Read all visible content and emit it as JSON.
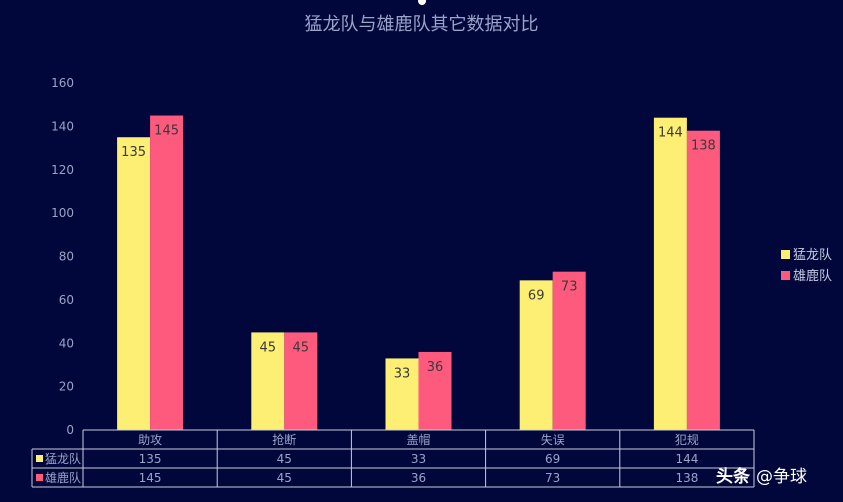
{
  "chart_data": {
    "type": "bar",
    "title": "猛龙队与雄鹿队其它数据对比",
    "categories": [
      "助攻",
      "抢断",
      "盖帽",
      "失误",
      "犯规"
    ],
    "series": [
      {
        "name": "猛龙队",
        "color": "#fcef73",
        "values": [
          135,
          45,
          33,
          69,
          144
        ]
      },
      {
        "name": "雄鹿队",
        "color": "#fe5a7e",
        "values": [
          145,
          45,
          36,
          73,
          138
        ]
      }
    ],
    "yticks": [
      0,
      20,
      40,
      60,
      80,
      100,
      120,
      140,
      160
    ],
    "ylim": [
      0,
      160
    ],
    "grid": false,
    "legend_position": "right",
    "data_table": true
  },
  "watermark": {
    "brand": "头条",
    "handle": "@争球"
  },
  "colors": {
    "background": "#01073a",
    "axis_text": "#9aa3c8",
    "table_line": "#c9cce0"
  }
}
